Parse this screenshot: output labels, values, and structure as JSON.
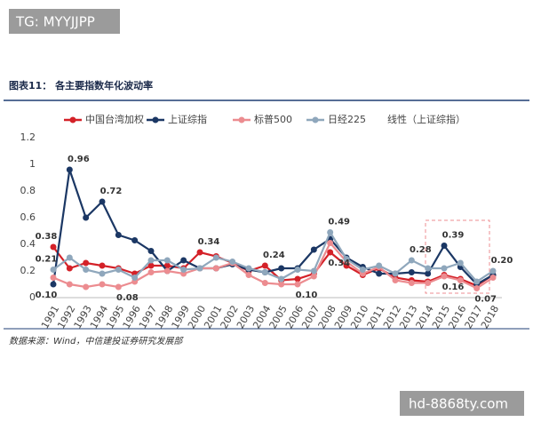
{
  "watermark_top": "TG: MYYJJPP",
  "watermark_bottom": "hd-8868ty.com",
  "chart_data": {
    "type": "line",
    "title": "图表11： 各主要指数年化波动率",
    "source": "数据来源：Wind，中信建投证券研究发展部",
    "trendline_label": "线性（上证综指）",
    "categories": [
      "1991",
      "1992",
      "1993",
      "1994",
      "1995",
      "1996",
      "1997",
      "1998",
      "1999",
      "2000",
      "2001",
      "2002",
      "2003",
      "2004",
      "2005",
      "2006",
      "2007",
      "2008",
      "2009",
      "2010",
      "2011",
      "2012",
      "2013",
      "2014",
      "2015",
      "2016",
      "2017",
      "2018"
    ],
    "ylim": [
      0,
      1.2
    ],
    "yticks": [
      0,
      0.2,
      0.4,
      0.6,
      0.8,
      1,
      1.2
    ],
    "grid": false,
    "series": [
      {
        "name": "中国台湾加权",
        "color": "#d42128",
        "values": [
          0.38,
          0.22,
          0.26,
          0.24,
          0.22,
          0.18,
          0.24,
          0.24,
          0.22,
          0.34,
          0.31,
          0.26,
          0.2,
          0.24,
          0.13,
          0.14,
          0.18,
          0.34,
          0.24,
          0.17,
          0.22,
          0.15,
          0.13,
          0.12,
          0.17,
          0.14,
          0.09,
          0.17
        ],
        "value_labels": [
          "0.38",
          null,
          null,
          null,
          null,
          null,
          null,
          null,
          null,
          "0.34",
          null,
          null,
          null,
          "0.24",
          null,
          null,
          null,
          "0.34",
          null,
          null,
          null,
          null,
          null,
          null,
          null,
          null,
          null,
          null
        ]
      },
      {
        "name": "上证综指",
        "color": "#1b3764",
        "values": [
          0.1,
          0.96,
          0.6,
          0.72,
          0.47,
          0.43,
          0.35,
          0.2,
          0.28,
          0.22,
          0.22,
          0.25,
          0.21,
          0.19,
          0.22,
          0.22,
          0.36,
          0.44,
          0.3,
          0.23,
          0.18,
          0.18,
          0.19,
          0.18,
          0.39,
          0.23,
          0.1,
          0.17
        ],
        "value_labels": [
          "0.10",
          "0.96",
          null,
          "0.72",
          null,
          null,
          null,
          null,
          null,
          null,
          null,
          null,
          null,
          null,
          null,
          null,
          null,
          null,
          null,
          null,
          null,
          null,
          null,
          null,
          "0.39",
          null,
          null,
          null
        ]
      },
      {
        "name": "标普500",
        "color": "#ec8c90",
        "values": [
          0.15,
          0.1,
          0.08,
          0.1,
          0.08,
          0.12,
          0.19,
          0.2,
          0.18,
          0.22,
          0.22,
          0.26,
          0.17,
          0.11,
          0.1,
          0.1,
          0.16,
          0.41,
          0.27,
          0.18,
          0.23,
          0.13,
          0.11,
          0.11,
          0.16,
          0.13,
          0.07,
          0.15
        ],
        "value_labels": [
          null,
          null,
          null,
          null,
          "0.08",
          null,
          null,
          null,
          null,
          null,
          null,
          null,
          null,
          null,
          null,
          "0.10",
          null,
          null,
          null,
          null,
          null,
          null,
          null,
          null,
          "0.16",
          null,
          "0.07",
          null
        ]
      },
      {
        "name": "日经225",
        "color": "#8fa7bc",
        "values": [
          0.21,
          0.3,
          0.21,
          0.18,
          0.21,
          0.15,
          0.28,
          0.28,
          0.21,
          0.22,
          0.3,
          0.27,
          0.22,
          0.19,
          0.14,
          0.21,
          0.2,
          0.49,
          0.29,
          0.21,
          0.24,
          0.18,
          0.28,
          0.22,
          0.22,
          0.26,
          0.12,
          0.2
        ],
        "value_labels": [
          "0.21",
          null,
          null,
          null,
          null,
          null,
          null,
          null,
          null,
          null,
          null,
          null,
          null,
          null,
          null,
          null,
          null,
          "0.49",
          null,
          null,
          null,
          null,
          "0.28",
          null,
          null,
          null,
          null,
          "0.20"
        ]
      }
    ]
  }
}
